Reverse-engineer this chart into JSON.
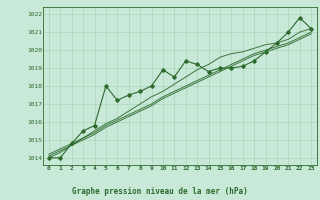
{
  "title": "Graphe pression niveau de la mer (hPa)",
  "bg_color": "#c8e8d8",
  "grid_color": "#b0d8c0",
  "line_color": "#2d6a2d",
  "xlim": [
    -0.5,
    23.5
  ],
  "ylim": [
    1013.6,
    1022.4
  ],
  "yticks": [
    1014,
    1015,
    1016,
    1017,
    1018,
    1019,
    1020,
    1021,
    1022
  ],
  "xticks": [
    0,
    1,
    2,
    3,
    4,
    5,
    6,
    7,
    8,
    9,
    10,
    11,
    12,
    13,
    14,
    15,
    16,
    17,
    18,
    19,
    20,
    21,
    22,
    23
  ],
  "xtick_labels": [
    "0",
    "1",
    "2",
    "3",
    "4",
    "5",
    "6",
    "7",
    "8",
    "9",
    "10",
    "11",
    "12",
    "13",
    "14",
    "15",
    "16",
    "17",
    "18",
    "19",
    "20",
    "21",
    "22",
    "23"
  ],
  "main_data": [
    1014.0,
    1014.0,
    1014.8,
    1015.5,
    1015.8,
    1018.0,
    1017.2,
    1017.5,
    1017.7,
    1018.0,
    1018.9,
    1018.5,
    1019.4,
    1019.2,
    1018.8,
    1019.0,
    1019.0,
    1019.1,
    1019.4,
    1019.9,
    1020.4,
    1021.0,
    1021.8,
    1021.2
  ],
  "trend1": [
    1014.0,
    1014.3,
    1014.7,
    1015.1,
    1015.5,
    1015.9,
    1016.2,
    1016.6,
    1017.0,
    1017.4,
    1017.7,
    1018.1,
    1018.5,
    1018.9,
    1019.2,
    1019.6,
    1019.8,
    1019.9,
    1020.1,
    1020.3,
    1020.4,
    1020.6,
    1021.0,
    1021.2
  ],
  "trend2": [
    1014.2,
    1014.5,
    1014.8,
    1015.1,
    1015.4,
    1015.8,
    1016.1,
    1016.4,
    1016.7,
    1017.0,
    1017.4,
    1017.7,
    1018.0,
    1018.3,
    1018.6,
    1018.9,
    1019.2,
    1019.5,
    1019.8,
    1020.0,
    1020.2,
    1020.4,
    1020.7,
    1021.0
  ],
  "trend3": [
    1014.1,
    1014.4,
    1014.7,
    1015.0,
    1015.3,
    1015.7,
    1016.0,
    1016.3,
    1016.6,
    1016.9,
    1017.3,
    1017.6,
    1017.9,
    1018.2,
    1018.5,
    1018.8,
    1019.1,
    1019.4,
    1019.7,
    1019.9,
    1020.1,
    1020.3,
    1020.6,
    1020.9
  ]
}
